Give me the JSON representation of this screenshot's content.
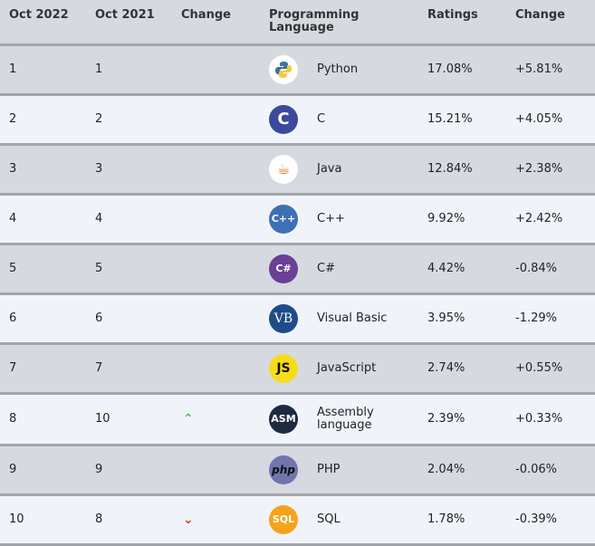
{
  "headers": [
    "Oct 2022",
    "Oct 2021",
    "Change",
    "Programming Language",
    "Ratings",
    "Change"
  ],
  "rows": [
    {
      "oct2022": "1",
      "oct2021": "1",
      "trend": "",
      "icon": "python-icon",
      "icon_text": "",
      "icon_bg": "#ffffff",
      "language": "Python",
      "rating": "17.08%",
      "change": "+5.81%"
    },
    {
      "oct2022": "2",
      "oct2021": "2",
      "trend": "",
      "icon": "c-icon",
      "icon_text": "C",
      "icon_bg": "#3b4a9c",
      "language": "C",
      "rating": "15.21%",
      "change": "+4.05%"
    },
    {
      "oct2022": "3",
      "oct2021": "3",
      "trend": "",
      "icon": "java-icon",
      "icon_text": "☕",
      "icon_bg": "#ffffff",
      "language": "Java",
      "rating": "12.84%",
      "change": "+2.38%"
    },
    {
      "oct2022": "4",
      "oct2021": "4",
      "trend": "",
      "icon": "cpp-icon",
      "icon_text": "C++",
      "icon_bg": "#3f6fb5",
      "language": "C++",
      "rating": "9.92%",
      "change": "+2.42%"
    },
    {
      "oct2022": "5",
      "oct2021": "5",
      "trend": "",
      "icon": "csharp-icon",
      "icon_text": "C#",
      "icon_bg": "#6a3f96",
      "language": "C#",
      "rating": "4.42%",
      "change": "-0.84%"
    },
    {
      "oct2022": "6",
      "oct2021": "6",
      "trend": "",
      "icon": "visual-basic-icon",
      "icon_text": "VB",
      "icon_bg": "#1f4b8a",
      "language": "Visual Basic",
      "rating": "3.95%",
      "change": "-1.29%"
    },
    {
      "oct2022": "7",
      "oct2021": "7",
      "trend": "",
      "icon": "javascript-icon",
      "icon_text": "JS",
      "icon_bg": "#f5de19",
      "language": "JavaScript",
      "rating": "2.74%",
      "change": "+0.55%"
    },
    {
      "oct2022": "8",
      "oct2021": "10",
      "trend": "up",
      "icon": "assembly-icon",
      "icon_text": "ASM",
      "icon_bg": "#1e2a40",
      "language": "Assembly language",
      "rating": "2.39%",
      "change": "+0.33%"
    },
    {
      "oct2022": "9",
      "oct2021": "9",
      "trend": "",
      "icon": "php-icon",
      "icon_text": "php",
      "icon_bg": "#7175ae",
      "language": "PHP",
      "rating": "2.04%",
      "change": "-0.06%"
    },
    {
      "oct2022": "10",
      "oct2021": "8",
      "trend": "down",
      "icon": "sql-icon",
      "icon_text": "SQL",
      "icon_bg": "#f6a21b",
      "language": "SQL",
      "rating": "1.78%",
      "change": "-0.39%"
    }
  ],
  "colors": {
    "up": "#5cb85c",
    "down": "#d9381e",
    "row_odd": "#d6dae0",
    "row_even": "#f0f4fa"
  }
}
